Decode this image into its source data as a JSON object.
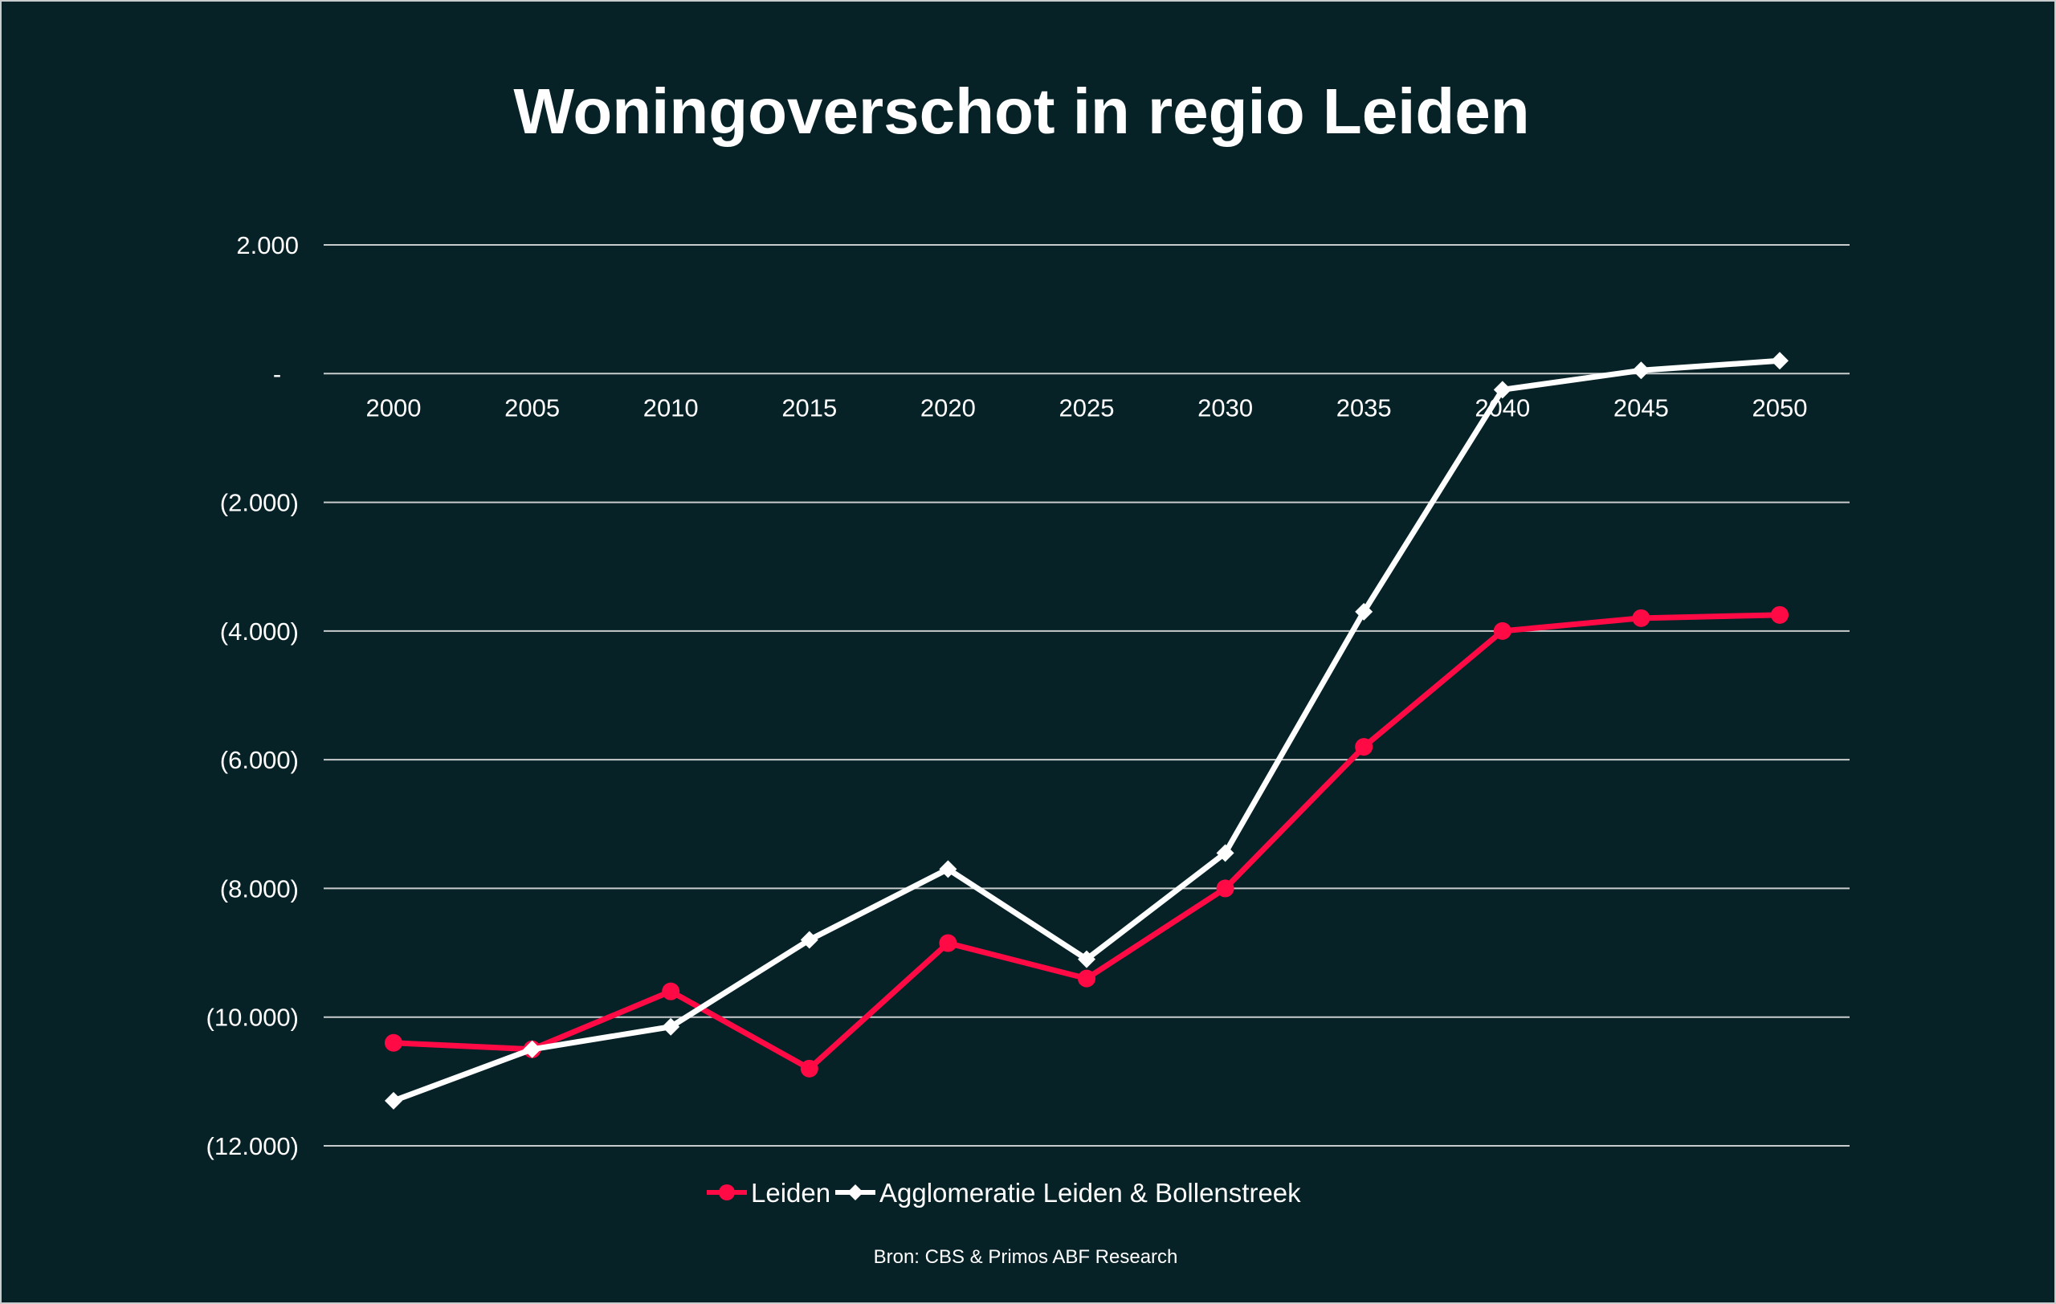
{
  "chart_data": {
    "type": "line",
    "title": "Woningoverschot in regio Leiden",
    "xlabel": "",
    "ylabel": "",
    "categories": [
      "2000",
      "2005",
      "2010",
      "2015",
      "2020",
      "2025",
      "2030",
      "2035",
      "2040",
      "2045",
      "2050"
    ],
    "ylim": [
      -12000,
      2000
    ],
    "yticks": [
      2000,
      0,
      -2000,
      -4000,
      -6000,
      -8000,
      -10000,
      -12000
    ],
    "ytick_labels": [
      "2.000",
      "-",
      "(2.000)",
      "(4.000)",
      "(6.000)",
      "(8.000)",
      "(10.000)",
      "(12.000)"
    ],
    "grid": true,
    "legend_position": "bottom",
    "series": [
      {
        "name": "Leiden",
        "color": "#ff0a45",
        "marker": "circle",
        "values": [
          -10400,
          -10500,
          -9600,
          -10800,
          -8850,
          -9400,
          -8000,
          -5800,
          -4000,
          -3800,
          -3750
        ]
      },
      {
        "name": "Agglomeratie Leiden & Bollenstreek",
        "color": "#ffffff",
        "marker": "diamond",
        "values": [
          -11300,
          -10500,
          -10150,
          -8800,
          -7700,
          -9100,
          -7450,
          -3700,
          -250,
          50,
          200
        ]
      }
    ],
    "source": "Bron: CBS & Primos ABF Research"
  },
  "colors": {
    "background": "#062227",
    "grid": "#c9cccc"
  }
}
